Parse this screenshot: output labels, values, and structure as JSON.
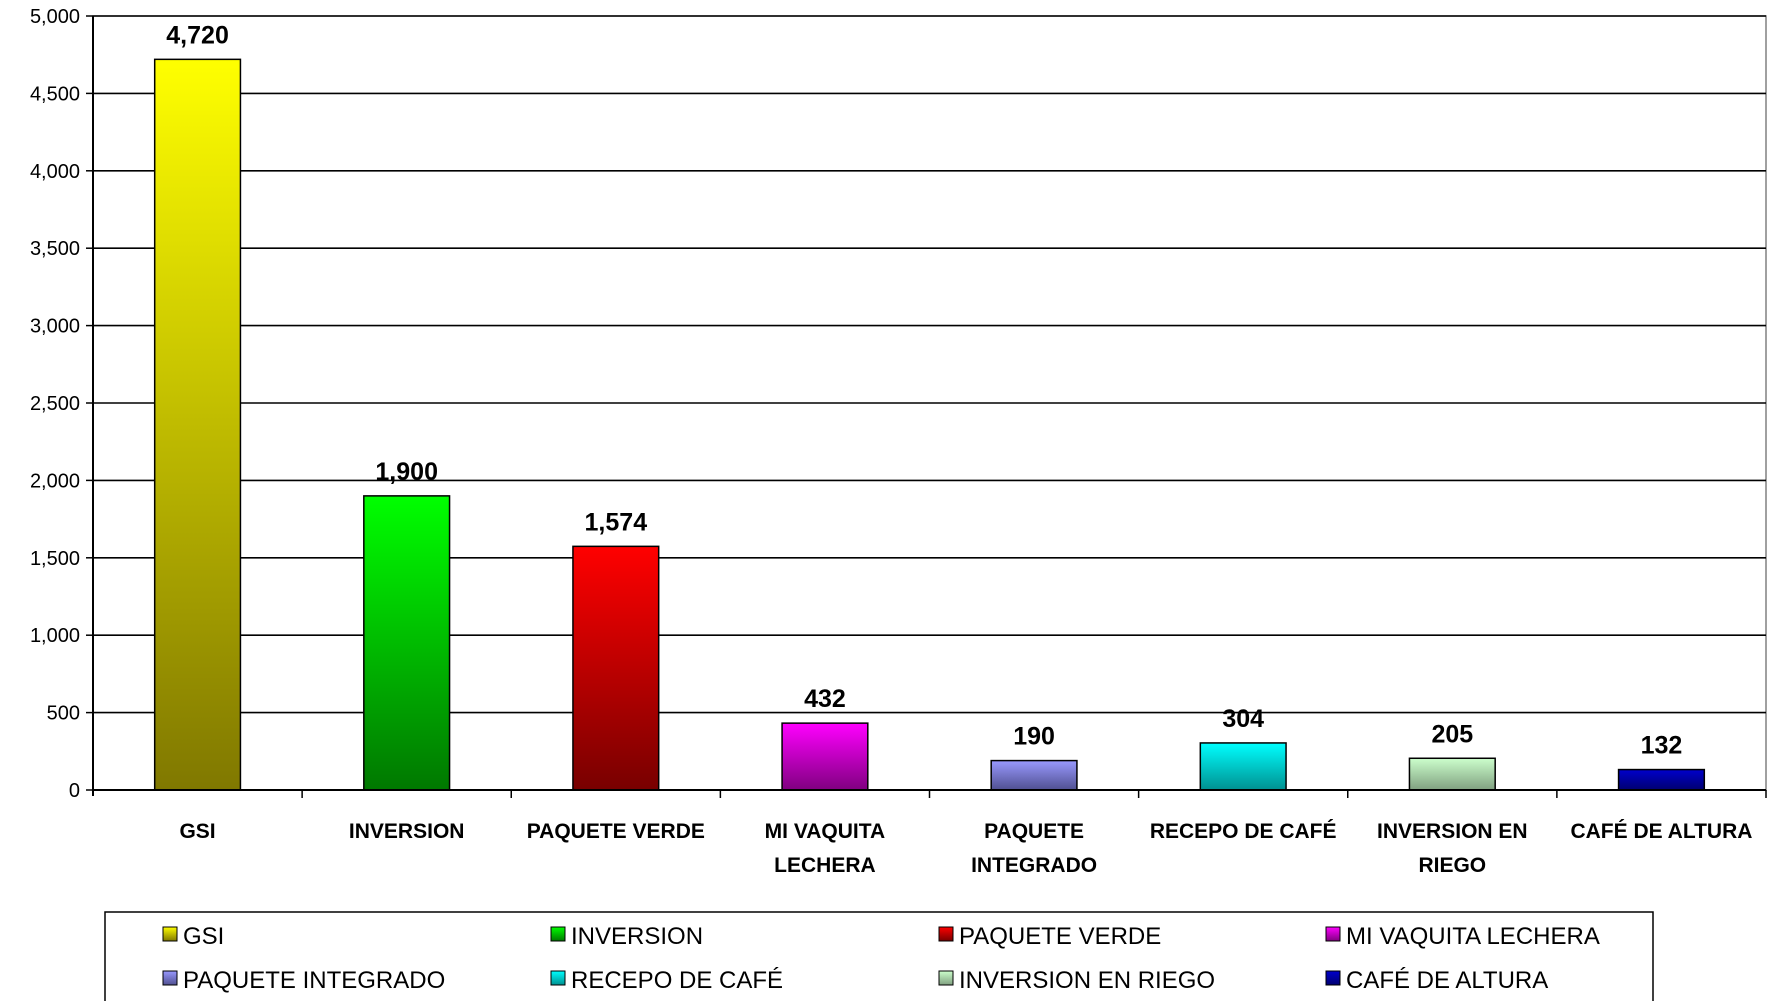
{
  "chart_data": {
    "type": "bar",
    "categories": [
      "GSI",
      "INVERSION",
      "PAQUETE VERDE",
      "MI VAQUITA LECHERA",
      "PAQUETE INTEGRADO",
      "RECEPO DE CAFÉ",
      "INVERSION EN RIEGO",
      "CAFÉ DE ALTURA"
    ],
    "category_lines": [
      [
        "GSI"
      ],
      [
        "INVERSION"
      ],
      [
        "PAQUETE VERDE"
      ],
      [
        "MI VAQUITA",
        "LECHERA"
      ],
      [
        "PAQUETE",
        "INTEGRADO"
      ],
      [
        "RECEPO DE CAFÉ"
      ],
      [
        "INVERSION EN",
        "RIEGO"
      ],
      [
        "CAFÉ DE ALTURA"
      ]
    ],
    "values": [
      4720,
      1900,
      1574,
      432,
      190,
      304,
      205,
      132
    ],
    "data_labels": [
      "4,720",
      "1,900",
      "1,574",
      "432",
      "190",
      "304",
      "205",
      "132"
    ],
    "colors": [
      "#ffff00",
      "#00ff00",
      "#ff0000",
      "#ff00ff",
      "#9999ff",
      "#00ffff",
      "#ccffcc",
      "#0000cc"
    ],
    "colors_dark": [
      "#807800",
      "#007800",
      "#780000",
      "#800080",
      "#505090",
      "#009090",
      "#80a080",
      "#000070"
    ],
    "ylim": [
      0,
      5000
    ],
    "yticks": [
      0,
      500,
      1000,
      1500,
      2000,
      2500,
      3000,
      3500,
      4000,
      4500,
      5000
    ],
    "ytick_labels": [
      "0",
      "500",
      "1,000",
      "1,500",
      "2,000",
      "2,500",
      "3,000",
      "3,500",
      "4,000",
      "4,500",
      "5,000"
    ],
    "grid": true,
    "legend_position": "bottom",
    "title": "",
    "xlabel": "",
    "ylabel": ""
  }
}
